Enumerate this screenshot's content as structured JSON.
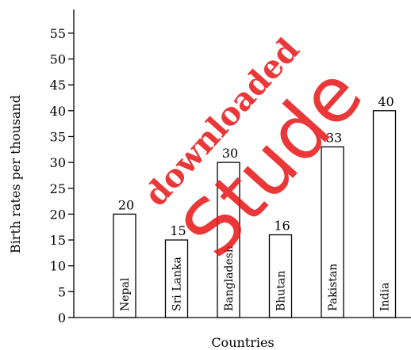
{
  "chart_data": {
    "type": "bar",
    "categories": [
      "Nepal",
      "Sri Lanka",
      "Bangladesh",
      "Bhutan",
      "Pakistan",
      "India"
    ],
    "values": [
      20,
      15,
      30,
      16,
      33,
      40
    ],
    "data_labels": [
      "20",
      "15",
      "30",
      "16",
      "33",
      "40"
    ],
    "yticks": [
      0,
      5,
      10,
      15,
      20,
      25,
      30,
      35,
      40,
      45,
      50,
      55
    ],
    "ylim": [
      0,
      60
    ],
    "xlabel": "Countries",
    "ylabel": "Birth rates per thousand",
    "grid": false,
    "legend": "none",
    "category_labels_inside_bars": true
  },
  "watermark": {
    "main_text": "Stude",
    "sub_text": "downloaded",
    "color": "#e81414"
  }
}
